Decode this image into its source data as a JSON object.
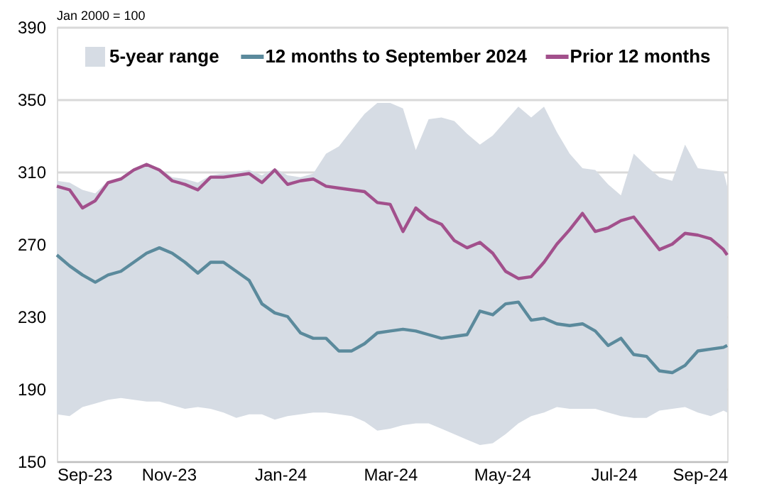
{
  "chart_data": {
    "type": "line",
    "annotations": [
      "Jan 2000 = 100"
    ],
    "x": [
      "2023-09-01",
      "2023-09-08",
      "2023-09-15",
      "2023-09-22",
      "2023-09-29",
      "2023-10-06",
      "2023-10-13",
      "2023-10-20",
      "2023-10-27",
      "2023-11-03",
      "2023-11-10",
      "2023-11-17",
      "2023-11-24",
      "2023-12-01",
      "2023-12-08",
      "2023-12-15",
      "2023-12-22",
      "2023-12-29",
      "2024-01-05",
      "2024-01-12",
      "2024-01-19",
      "2024-01-26",
      "2024-02-02",
      "2024-02-09",
      "2024-02-16",
      "2024-02-23",
      "2024-03-01",
      "2024-03-08",
      "2024-03-15",
      "2024-03-22",
      "2024-03-29",
      "2024-04-05",
      "2024-04-12",
      "2024-04-19",
      "2024-04-26",
      "2024-05-03",
      "2024-05-10",
      "2024-05-17",
      "2024-05-24",
      "2024-05-31",
      "2024-06-07",
      "2024-06-14",
      "2024-06-21",
      "2024-06-28",
      "2024-07-05",
      "2024-07-12",
      "2024-07-19",
      "2024-07-26",
      "2024-08-02",
      "2024-08-09",
      "2024-08-16",
      "2024-08-23",
      "2024-08-30",
      "2024-09-01"
    ],
    "series": [
      {
        "name": "5-year range",
        "type": "area",
        "color": "#d6dce4",
        "values": [
          null,
          null,
          null,
          null,
          null,
          null,
          null,
          null,
          null,
          null,
          null,
          null,
          null,
          null,
          null,
          null,
          null,
          null,
          null,
          null,
          null,
          null,
          null,
          null,
          null,
          null,
          null,
          null,
          null,
          null,
          null,
          null,
          null,
          null,
          null,
          null,
          null,
          null,
          null,
          null,
          null,
          null,
          null,
          null,
          null,
          null,
          null,
          null,
          null,
          null,
          null,
          null,
          null,
          null
        ],
        "upper": [
          305,
          304,
          300,
          298,
          305,
          307,
          312,
          315,
          312,
          307,
          306,
          304,
          308,
          309,
          310,
          311,
          308,
          312,
          308,
          307,
          309,
          320,
          324,
          333,
          342,
          348,
          348,
          345,
          322,
          339,
          340,
          338,
          331,
          325,
          330,
          338,
          346,
          340,
          346,
          332,
          320,
          312,
          311,
          303,
          297,
          320,
          313,
          307,
          305,
          325,
          312,
          311,
          310,
          302
        ],
        "lower": [
          176,
          175,
          180,
          182,
          184,
          185,
          184,
          183,
          183,
          181,
          179,
          180,
          179,
          177,
          174,
          176,
          176,
          173,
          175,
          176,
          177,
          177,
          176,
          175,
          172,
          167,
          168,
          170,
          171,
          171,
          168,
          165,
          162,
          159,
          160,
          165,
          171,
          175,
          177,
          180,
          179,
          179,
          179,
          177,
          175,
          174,
          174,
          178,
          179,
          180,
          177,
          175,
          178,
          177
        ]
      },
      {
        "name": "12 months to September 2024",
        "color": "#5b8a9c",
        "values": [
          264,
          258,
          253,
          249,
          253,
          255,
          260,
          265,
          268,
          265,
          260,
          254,
          260,
          260,
          255,
          250,
          237,
          232,
          230,
          221,
          218,
          218,
          211,
          211,
          215,
          221,
          222,
          223,
          222,
          220,
          218,
          219,
          220,
          233,
          231,
          237,
          238,
          228,
          229,
          226,
          225,
          226,
          222,
          214,
          218,
          209,
          208,
          200,
          199,
          203,
          211,
          212,
          213,
          214
        ]
      },
      {
        "name": "Prior 12 months",
        "color": "#a2508c",
        "values": [
          302,
          300,
          290,
          294,
          304,
          306,
          311,
          314,
          311,
          305,
          303,
          300,
          307,
          307,
          308,
          309,
          304,
          311,
          303,
          305,
          306,
          302,
          301,
          300,
          299,
          293,
          292,
          277,
          290,
          284,
          281,
          272,
          268,
          271,
          265,
          255,
          251,
          252,
          260,
          270,
          278,
          287,
          277,
          279,
          283,
          285,
          276,
          267,
          270,
          276,
          275,
          273,
          267,
          264
        ]
      }
    ],
    "xlim": [
      "2023-09-01",
      "2024-09-01"
    ],
    "xticks": [
      {
        "value": "2023-09-01",
        "label": "Sep-23"
      },
      {
        "value": "2023-11-01",
        "label": "Nov-23"
      },
      {
        "value": "2024-01-01",
        "label": "Jan-24"
      },
      {
        "value": "2024-03-01",
        "label": "Mar-24"
      },
      {
        "value": "2024-05-01",
        "label": "May-24"
      },
      {
        "value": "2024-07-01",
        "label": "Jul-24"
      },
      {
        "value": "2024-09-01",
        "label": "Sep-24"
      }
    ],
    "ylim": [
      150,
      390
    ],
    "yticks": [
      150,
      190,
      230,
      270,
      310,
      350,
      390
    ],
    "grid": "y",
    "legend": "top"
  }
}
